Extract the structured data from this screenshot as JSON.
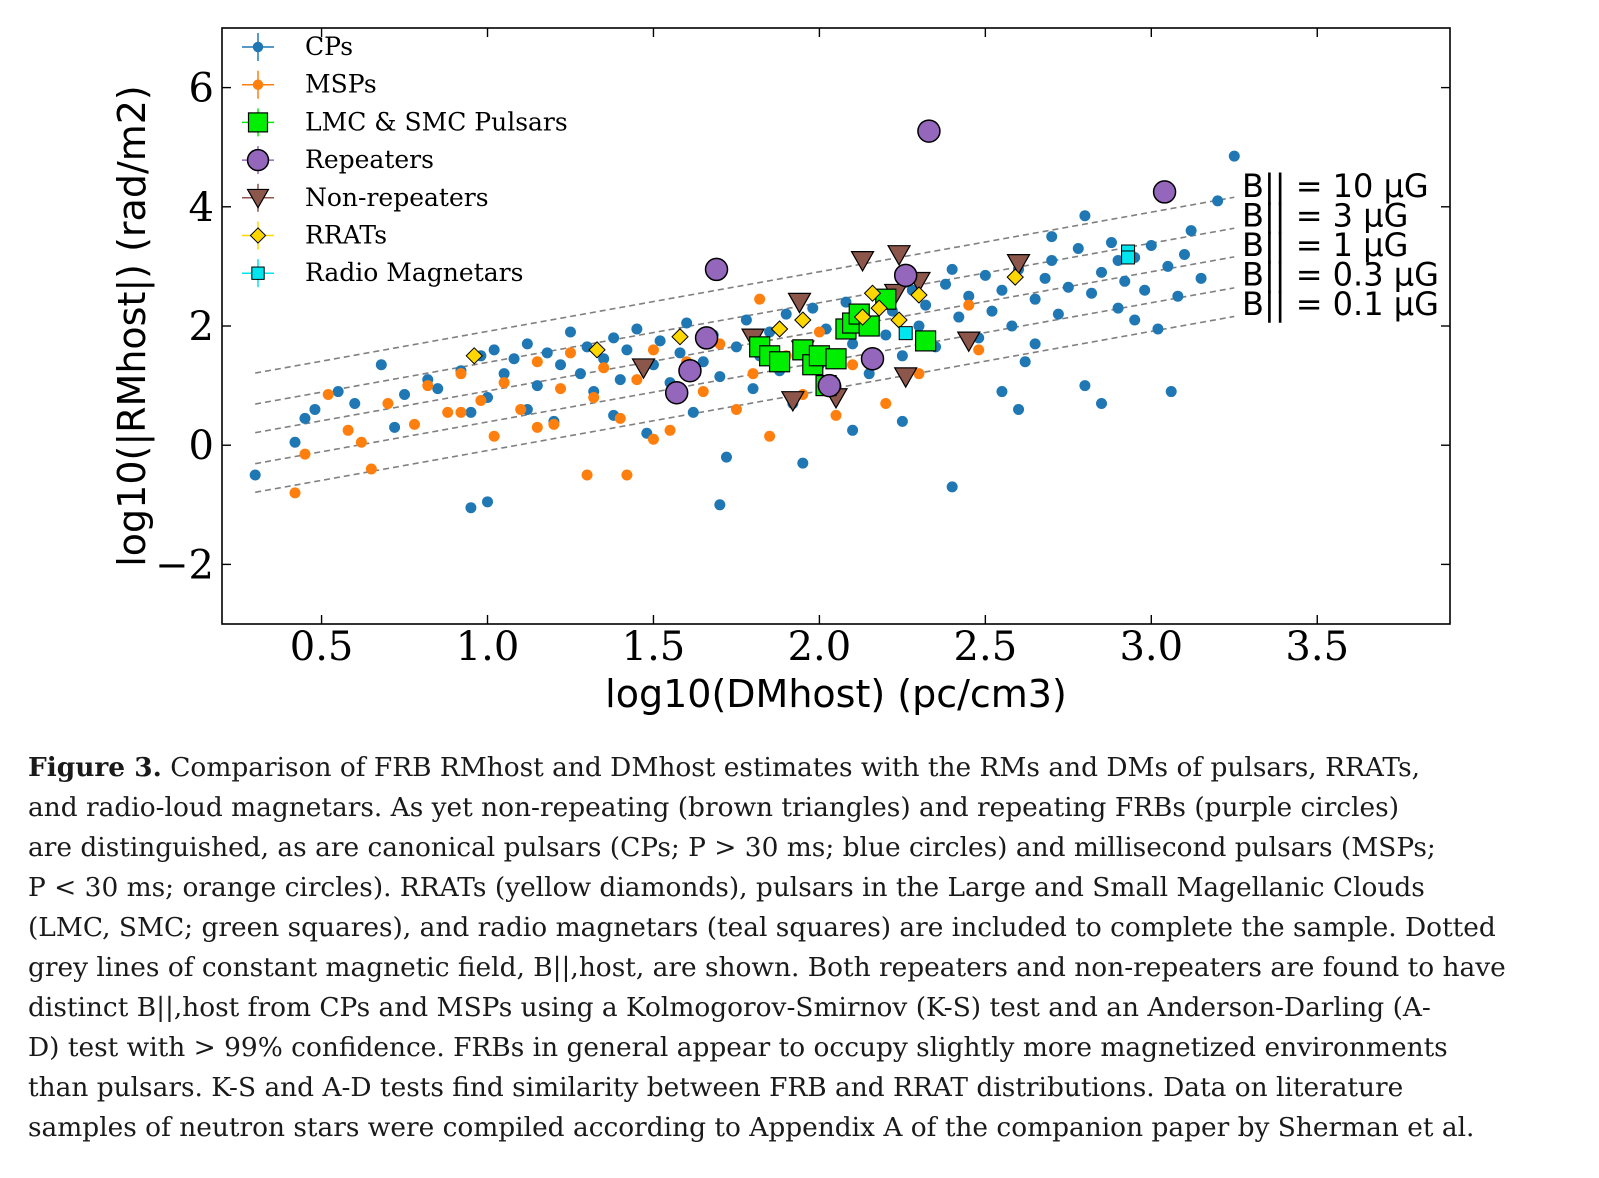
{
  "chart_data": {
    "type": "scatter",
    "xlabel": "log10(DMhost) (pc/cm3)",
    "ylabel": "log10(|RMhost|) (rad/m2)",
    "xlim": [
      0.2,
      3.9
    ],
    "ylim": [
      -3,
      7
    ],
    "xticks": [
      "0.5",
      "1.0",
      "1.5",
      "2.0",
      "2.5",
      "3.0",
      "3.5"
    ],
    "yticks": [
      "−2",
      "0",
      "2",
      "4",
      "6"
    ],
    "xtick_values": [
      0.5,
      1.0,
      1.5,
      2.0,
      2.5,
      3.0,
      3.5
    ],
    "ytick_values": [
      -2,
      0,
      2,
      4,
      6
    ],
    "legend_position": "top-left",
    "b_lines": [
      {
        "label": "B|| = 10 µG",
        "offset": 0.91
      },
      {
        "label": "B|| = 3 µG",
        "offset": 0.39
      },
      {
        "label": "B|| = 1 µG",
        "offset": -0.09
      },
      {
        "label": "B|| = 0.3 µG",
        "offset": -0.61
      },
      {
        "label": "B|| = 0.1 µG",
        "offset": -1.09
      }
    ],
    "series": [
      {
        "name": "CPs",
        "color": "#1f77b4",
        "marker": "circle",
        "points": [
          [
            0.3,
            -0.5
          ],
          [
            0.42,
            0.05
          ],
          [
            0.45,
            0.45
          ],
          [
            0.48,
            0.6
          ],
          [
            0.55,
            0.9
          ],
          [
            0.6,
            0.7
          ],
          [
            0.68,
            1.35
          ],
          [
            0.75,
            0.85
          ],
          [
            0.85,
            0.95
          ],
          [
            0.92,
            1.25
          ],
          [
            0.95,
            0.55
          ],
          [
            0.98,
            1.5
          ],
          [
            1.0,
            0.8
          ],
          [
            1.02,
            1.6
          ],
          [
            1.05,
            1.2
          ],
          [
            1.08,
            1.45
          ],
          [
            1.12,
            1.7
          ],
          [
            1.15,
            1.0
          ],
          [
            1.18,
            1.55
          ],
          [
            1.2,
            0.4
          ],
          [
            1.22,
            1.35
          ],
          [
            1.25,
            1.9
          ],
          [
            1.28,
            1.2
          ],
          [
            1.3,
            1.65
          ],
          [
            1.32,
            0.9
          ],
          [
            1.35,
            1.45
          ],
          [
            1.38,
            1.8
          ],
          [
            1.4,
            1.1
          ],
          [
            1.42,
            1.6
          ],
          [
            1.45,
            1.95
          ],
          [
            1.48,
            0.2
          ],
          [
            1.5,
            1.35
          ],
          [
            1.52,
            1.75
          ],
          [
            1.55,
            1.05
          ],
          [
            1.58,
            1.55
          ],
          [
            1.6,
            2.05
          ],
          [
            1.62,
            0.55
          ],
          [
            1.65,
            1.4
          ],
          [
            1.68,
            1.85
          ],
          [
            1.7,
            1.15
          ],
          [
            1.72,
            -0.2
          ],
          [
            1.75,
            1.65
          ],
          [
            1.78,
            2.1
          ],
          [
            1.8,
            0.95
          ],
          [
            1.82,
            1.5
          ],
          [
            1.85,
            1.9
          ],
          [
            1.88,
            1.25
          ],
          [
            1.9,
            2.2
          ],
          [
            1.92,
            0.7
          ],
          [
            1.95,
            1.6
          ],
          [
            1.98,
            2.3
          ],
          [
            2.0,
            1.35
          ],
          [
            2.02,
            1.95
          ],
          [
            2.05,
            1.0
          ],
          [
            2.08,
            2.4
          ],
          [
            2.1,
            1.7
          ],
          [
            2.12,
            2.1
          ],
          [
            2.15,
            1.2
          ],
          [
            2.18,
            2.5
          ],
          [
            2.2,
            1.85
          ],
          [
            2.22,
            2.25
          ],
          [
            2.25,
            1.5
          ],
          [
            2.28,
            2.6
          ],
          [
            2.3,
            2.0
          ],
          [
            2.32,
            2.35
          ],
          [
            2.35,
            1.65
          ],
          [
            2.38,
            2.7
          ],
          [
            2.4,
            -0.7
          ],
          [
            2.42,
            2.15
          ],
          [
            2.45,
            2.5
          ],
          [
            2.48,
            1.8
          ],
          [
            2.5,
            2.85
          ],
          [
            2.52,
            2.25
          ],
          [
            2.55,
            2.6
          ],
          [
            2.58,
            2.0
          ],
          [
            2.6,
            2.95
          ],
          [
            2.62,
            1.4
          ],
          [
            2.65,
            2.45
          ],
          [
            2.68,
            2.8
          ],
          [
            2.7,
            3.1
          ],
          [
            2.72,
            2.2
          ],
          [
            2.75,
            2.65
          ],
          [
            2.78,
            3.3
          ],
          [
            2.8,
            1.0
          ],
          [
            2.82,
            2.55
          ],
          [
            2.85,
            2.9
          ],
          [
            2.88,
            3.4
          ],
          [
            2.9,
            2.3
          ],
          [
            2.92,
            2.75
          ],
          [
            2.95,
            3.15
          ],
          [
            2.98,
            2.6
          ],
          [
            3.0,
            3.35
          ],
          [
            3.02,
            1.95
          ],
          [
            3.05,
            3.0
          ],
          [
            3.08,
            2.5
          ],
          [
            3.12,
            3.6
          ],
          [
            3.15,
            2.8
          ],
          [
            3.2,
            4.1
          ],
          [
            3.25,
            4.85
          ],
          [
            3.06,
            0.9
          ],
          [
            2.8,
            3.85
          ],
          [
            2.7,
            3.5
          ],
          [
            2.6,
            0.6
          ],
          [
            2.55,
            0.9
          ],
          [
            2.85,
            0.7
          ],
          [
            1.0,
            -0.95
          ],
          [
            0.95,
            -1.05
          ],
          [
            1.95,
            -0.3
          ],
          [
            2.1,
            0.25
          ],
          [
            1.7,
            -1.0
          ],
          [
            0.72,
            0.3
          ],
          [
            0.82,
            1.1
          ],
          [
            1.12,
            0.6
          ],
          [
            1.38,
            0.5
          ],
          [
            2.25,
            0.4
          ],
          [
            2.65,
            1.7
          ],
          [
            2.4,
            2.95
          ],
          [
            2.9,
            3.1
          ],
          [
            2.95,
            2.1
          ],
          [
            3.1,
            3.2
          ]
        ]
      },
      {
        "name": "MSPs",
        "color": "#ff7f0e",
        "marker": "circle",
        "points": [
          [
            0.42,
            -0.8
          ],
          [
            0.45,
            -0.15
          ],
          [
            0.52,
            0.85
          ],
          [
            0.58,
            0.25
          ],
          [
            0.62,
            0.05
          ],
          [
            0.65,
            -0.4
          ],
          [
            0.7,
            0.7
          ],
          [
            0.78,
            0.35
          ],
          [
            0.82,
            1.0
          ],
          [
            0.88,
            0.55
          ],
          [
            0.92,
            1.2
          ],
          [
            0.98,
            0.75
          ],
          [
            1.02,
            0.15
          ],
          [
            1.05,
            1.05
          ],
          [
            1.1,
            0.6
          ],
          [
            1.15,
            1.4
          ],
          [
            1.2,
            0.35
          ],
          [
            1.22,
            0.95
          ],
          [
            1.25,
            1.55
          ],
          [
            1.3,
            -0.5
          ],
          [
            1.32,
            0.8
          ],
          [
            1.35,
            1.3
          ],
          [
            1.4,
            0.45
          ],
          [
            1.42,
            -0.5
          ],
          [
            1.45,
            1.1
          ],
          [
            1.5,
            1.6
          ],
          [
            1.55,
            0.25
          ],
          [
            1.6,
            1.4
          ],
          [
            1.65,
            0.9
          ],
          [
            1.7,
            1.7
          ],
          [
            1.75,
            0.6
          ],
          [
            1.8,
            1.2
          ],
          [
            1.82,
            2.45
          ],
          [
            1.85,
            0.15
          ],
          [
            1.9,
            1.5
          ],
          [
            1.95,
            0.85
          ],
          [
            2.0,
            1.9
          ],
          [
            2.05,
            0.5
          ],
          [
            2.1,
            1.35
          ],
          [
            2.2,
            0.7
          ],
          [
            2.3,
            1.2
          ],
          [
            2.45,
            2.35
          ],
          [
            2.48,
            1.6
          ],
          [
            1.15,
            0.3
          ],
          [
            0.92,
            0.55
          ],
          [
            1.5,
            0.1
          ]
        ]
      },
      {
        "name": "LMC & SMC Pulsars",
        "color": "#00ee00",
        "marker": "square",
        "points": [
          [
            1.82,
            1.65
          ],
          [
            1.85,
            1.5
          ],
          [
            1.88,
            1.4
          ],
          [
            1.95,
            1.6
          ],
          [
            1.98,
            1.35
          ],
          [
            2.0,
            1.5
          ],
          [
            2.02,
            1.0
          ],
          [
            2.05,
            1.45
          ],
          [
            2.08,
            1.95
          ],
          [
            2.1,
            2.05
          ],
          [
            2.12,
            2.2
          ],
          [
            2.15,
            2.0
          ],
          [
            2.2,
            2.45
          ],
          [
            2.32,
            1.75
          ]
        ]
      },
      {
        "name": "Repeaters",
        "color": "#9467bd",
        "marker": "circle-lg",
        "points": [
          [
            2.33,
            5.27
          ],
          [
            3.04,
            4.25
          ],
          [
            1.69,
            2.95
          ],
          [
            2.26,
            2.85
          ],
          [
            1.66,
            1.8
          ],
          [
            1.57,
            0.88
          ],
          [
            1.61,
            1.25
          ],
          [
            2.03,
            1.0
          ],
          [
            2.16,
            1.45
          ]
        ]
      },
      {
        "name": "Non-repeaters",
        "color": "#8c564b",
        "marker": "triangle",
        "points": [
          [
            2.24,
            3.2
          ],
          [
            2.13,
            3.1
          ],
          [
            2.6,
            3.05
          ],
          [
            2.3,
            2.75
          ],
          [
            2.23,
            2.55
          ],
          [
            1.94,
            2.4
          ],
          [
            1.8,
            1.8
          ],
          [
            1.95,
            1.6
          ],
          [
            1.47,
            1.3
          ],
          [
            2.45,
            1.75
          ],
          [
            2.26,
            1.15
          ],
          [
            1.92,
            0.75
          ],
          [
            2.05,
            0.8
          ]
        ]
      },
      {
        "name": "RRATs",
        "color": "#ffd700",
        "marker": "diamond",
        "points": [
          [
            0.96,
            1.5
          ],
          [
            1.33,
            1.6
          ],
          [
            1.58,
            1.82
          ],
          [
            1.88,
            1.95
          ],
          [
            1.95,
            2.1
          ],
          [
            2.13,
            2.15
          ],
          [
            2.16,
            2.55
          ],
          [
            2.18,
            2.3
          ],
          [
            2.24,
            2.1
          ],
          [
            2.3,
            2.52
          ],
          [
            2.59,
            2.82
          ]
        ]
      },
      {
        "name": "Radio Magnetars",
        "color": "#00e5ee",
        "marker": "square-sm",
        "points": [
          [
            2.93,
            3.25
          ],
          [
            2.93,
            3.15
          ],
          [
            2.26,
            1.88
          ]
        ]
      }
    ]
  },
  "caption": {
    "lines": [
      "Comparison of FRB RMhost and DMhost estimates with the RMs and DMs of pulsars, RRATs,",
      "and radio-loud magnetars.  As yet non-repeating (brown triangles) and repeating FRBs (purple circles)",
      "are distinguished, as are canonical pulsars (CPs; P > 30 ms; blue circles) and millisecond pulsars (MSPs;",
      "P < 30 ms; orange circles). RRATs (yellow diamonds), pulsars in the Large and Small Magellanic Clouds",
      "(LMC, SMC; green squares), and radio magnetars (teal squares) are included to complete the sample. Dotted",
      "grey lines of constant magnetic field, B||,host, are shown. Both repeaters and non-repeaters are found to have",
      "distinct B||,host from CPs and MSPs using a Kolmogorov-Smirnov (K-S) test and an Anderson-Darling (A-",
      "D) test with > 99% confidence. FRBs in general appear to occupy slightly more magnetized environments",
      "than pulsars. K-S and A-D tests find similarity between FRB and RRAT distributions. Data on literature",
      "samples of neutron stars were compiled according to Appendix A of the companion paper by Sherman et al."
    ],
    "figure_label": "Figure 3."
  }
}
